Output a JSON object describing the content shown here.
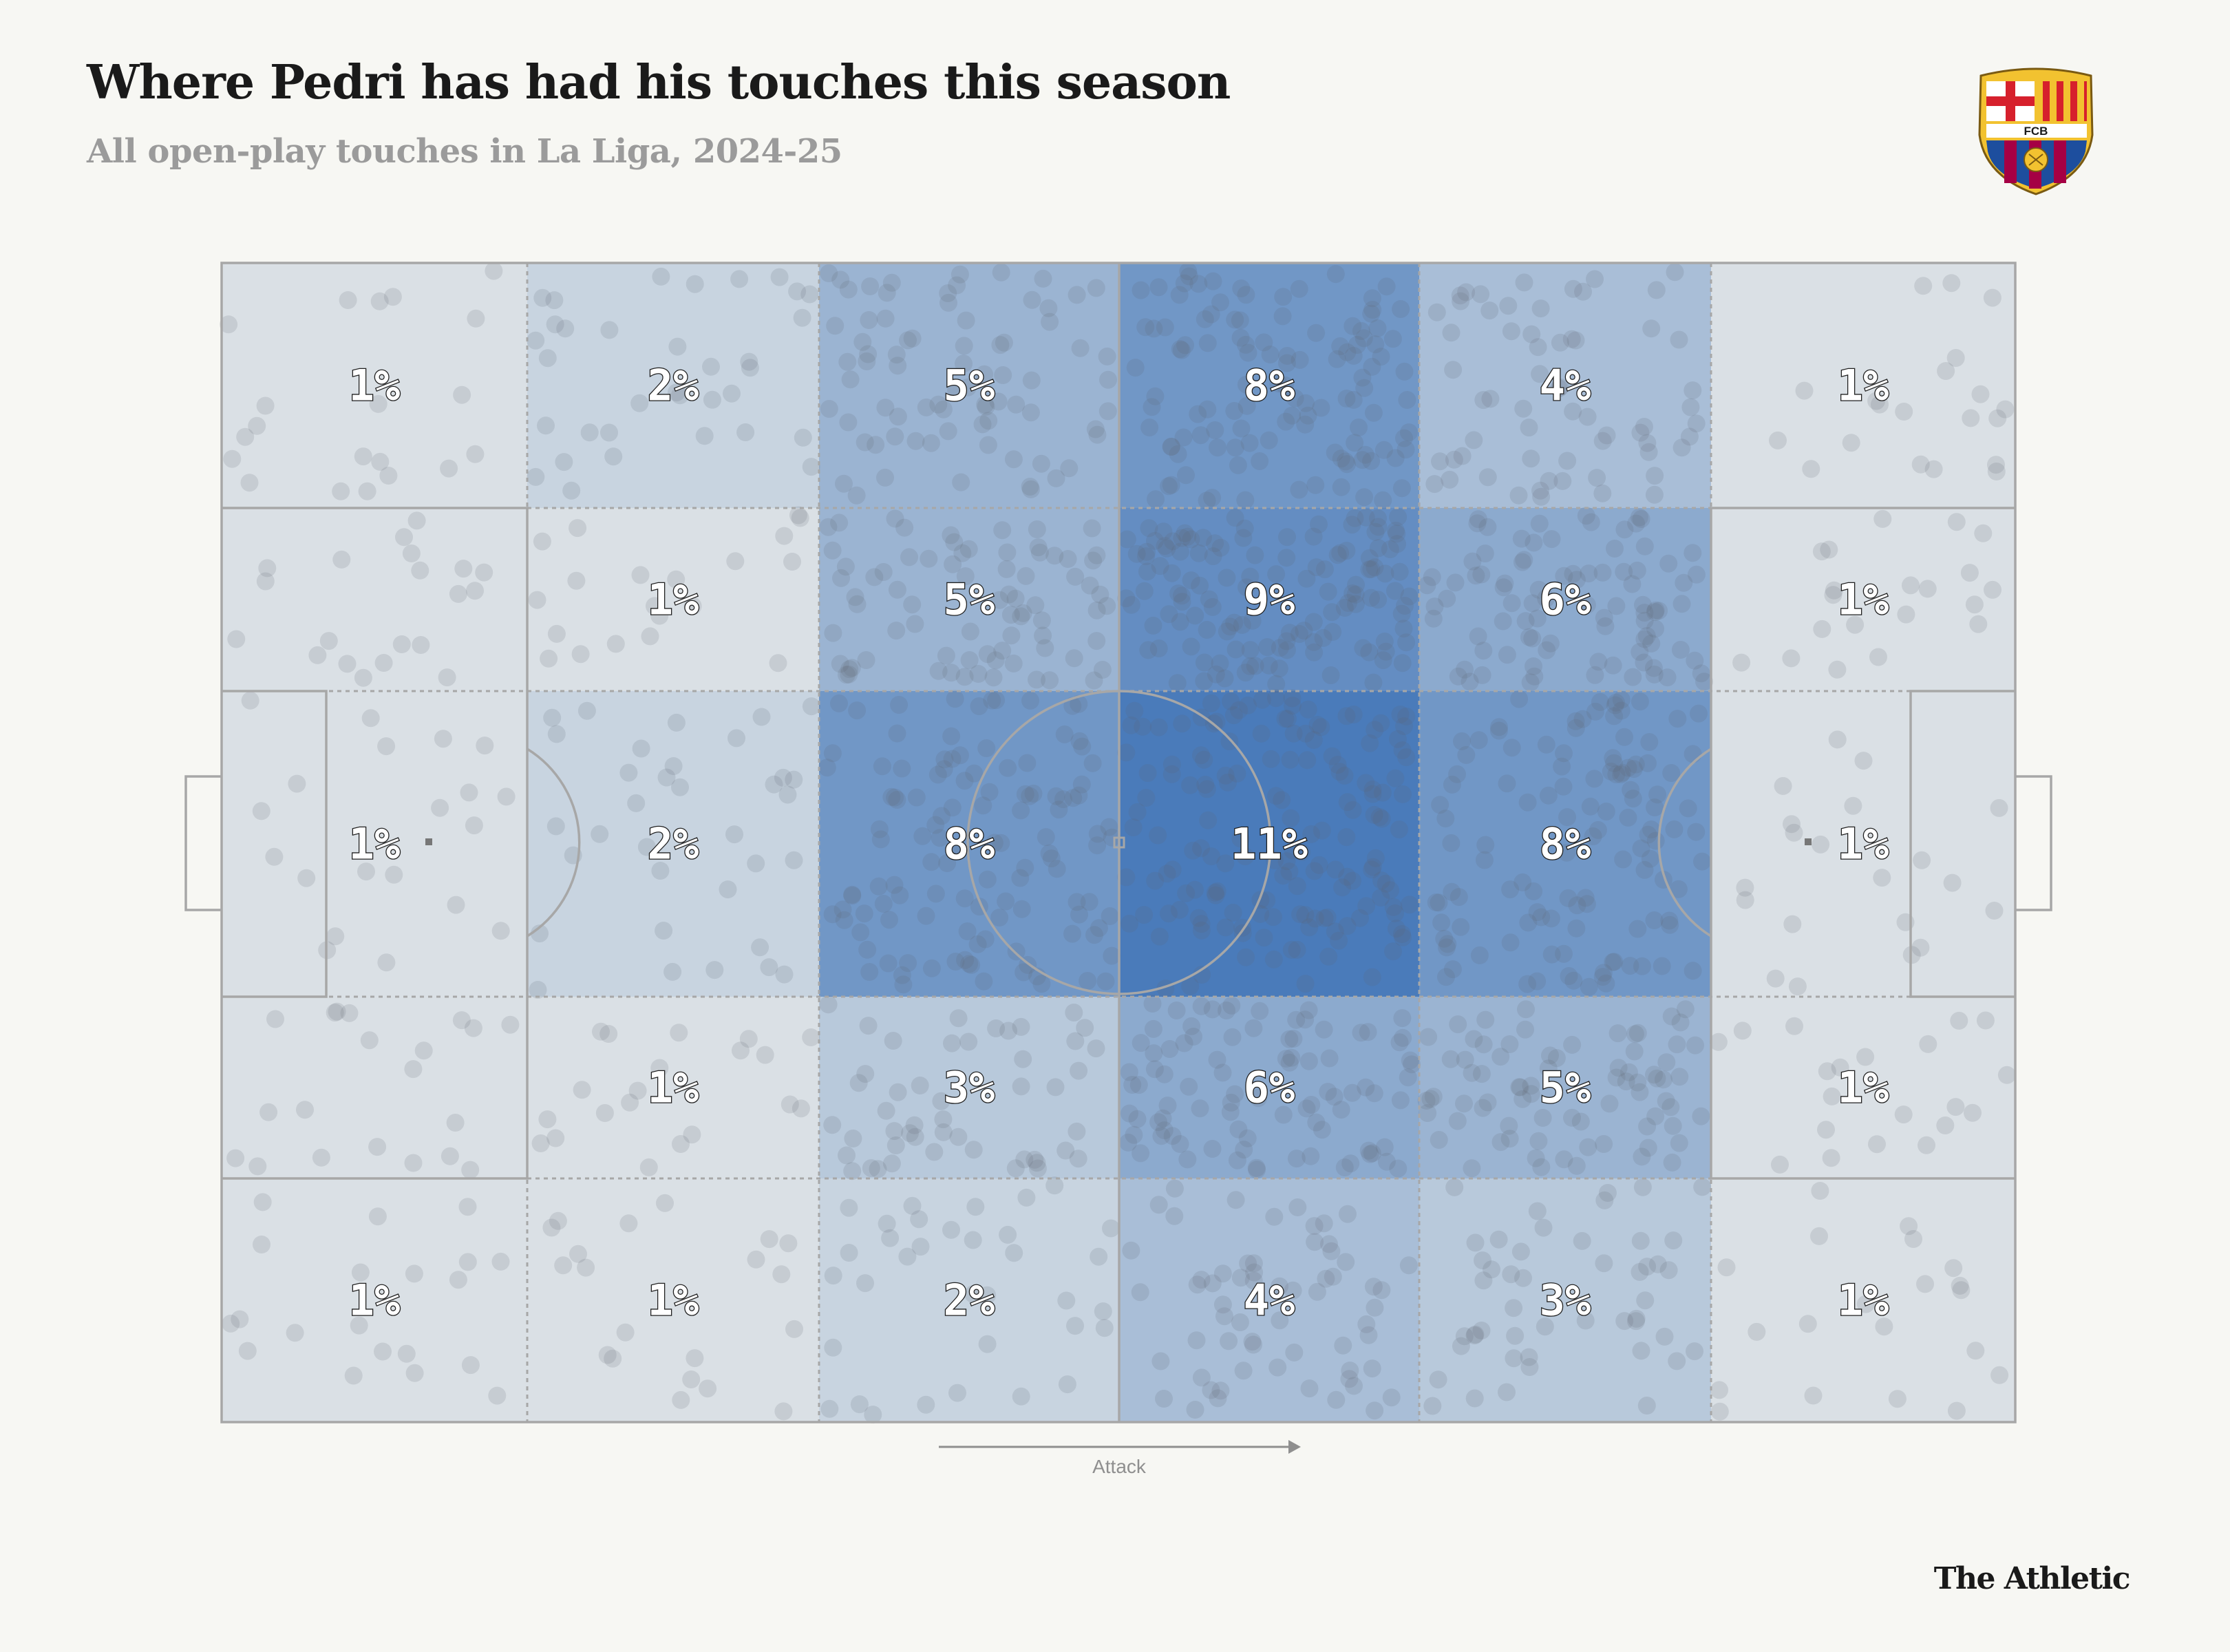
{
  "title": "Where Pedri has had his touches this season",
  "subtitle": "All open-play touches in La Liga, 2024-25",
  "crest": {
    "name": "fc-barcelona-crest",
    "text": "FCB",
    "colors": {
      "blue": "#1d4e9e",
      "garnet": "#a50044",
      "gold": "#f2c230",
      "red": "#d6202c"
    }
  },
  "attack_label": "Attack",
  "brand": "The Athletic",
  "chart_data": {
    "type": "heatmap",
    "title": "Where Pedri has had his touches this season",
    "subtitle": "All open-play touches in La Liga, 2024-25",
    "direction_label": "Attack",
    "column_labels": [
      "",
      "",
      "",
      "",
      "",
      ""
    ],
    "row_labels": [
      "",
      "",
      "",
      "",
      ""
    ],
    "values": [
      [
        1,
        2,
        5,
        8,
        4,
        1
      ],
      [
        1,
        1,
        5,
        9,
        6,
        1
      ],
      [
        1,
        2,
        8,
        11,
        8,
        1
      ],
      [
        1,
        1,
        3,
        6,
        5,
        1
      ],
      [
        1,
        1,
        2,
        4,
        3,
        1
      ]
    ],
    "labels": [
      [
        "1%",
        "2%",
        "5%",
        "8%",
        "4%",
        "1%"
      ],
      [
        "",
        "1%",
        "5%",
        "9%",
        "6%",
        "1%"
      ],
      [
        "1%",
        "2%",
        "8%",
        "11%",
        "8%",
        "1%"
      ],
      [
        "",
        "1%",
        "3%",
        "6%",
        "5%",
        "1%"
      ],
      [
        "1%",
        "1%",
        "2%",
        "4%",
        "3%",
        "1%"
      ]
    ],
    "unit": "%",
    "color_scale": {
      "low": "#efefec",
      "high": "#4a7bba"
    },
    "scatter_color": "#5f6470",
    "pitch_line_color": "#a7a7a7"
  }
}
